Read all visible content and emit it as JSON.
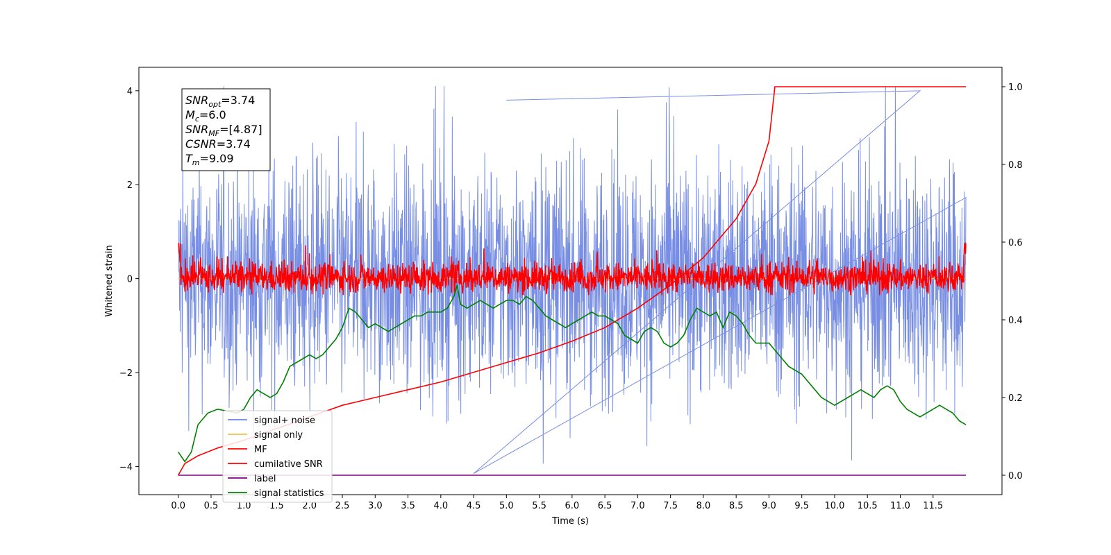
{
  "chart_data": {
    "type": "line",
    "title": "",
    "xlabel": "Time (s)",
    "ylabel_left": "Whitened strain",
    "ylabel_right": "",
    "xlim": [
      -0.6,
      12.55
    ],
    "ylim_left": [
      -4.6,
      4.5
    ],
    "ylim_right": [
      -0.05,
      1.05
    ],
    "x_ticks": [
      "0.0",
      "0.5",
      "1.0",
      "1.5",
      "2.0",
      "2.5",
      "3.0",
      "3.5",
      "4.0",
      "4.5",
      "5.0",
      "5.5",
      "6.0",
      "6.5",
      "7.0",
      "7.5",
      "8.0",
      "8.5",
      "9.0",
      "9.5",
      "10.0",
      "10.5",
      "11.0",
      "11.5"
    ],
    "y_ticks_left": [
      "4",
      "2",
      "0",
      "−2",
      "−4"
    ],
    "y_ticks_right": [
      "1.0",
      "0.8",
      "0.6",
      "0.4",
      "0.2",
      "0.0"
    ],
    "grid": false,
    "legend_position": "lower-left",
    "series": [
      {
        "name": "signal+ noise",
        "color": "#6b84e2",
        "axis": "left",
        "kind": "noise",
        "x_range": [
          0.0,
          12.0
        ],
        "amplitude_band": [
          -4.1,
          4.1
        ],
        "note_peaks": [
          [
            4.5,
            -4.15
          ],
          [
            11.3,
            4.0
          ],
          [
            5.0,
            3.8
          ]
        ]
      },
      {
        "name": "signal only",
        "color": "#f5c04a",
        "axis": "left",
        "values": [
          [
            0.0,
            0.0
          ],
          [
            12.0,
            0.0
          ]
        ]
      },
      {
        "name": "MF",
        "color": "#ff0000",
        "axis": "left",
        "kind": "noise",
        "x_range": [
          0.0,
          12.0
        ],
        "amplitude_band": [
          -0.35,
          0.75
        ]
      },
      {
        "name": "cumilative SNR",
        "color": "#ff0000",
        "axis": "right",
        "x": [
          0.0,
          0.1,
          0.3,
          0.6,
          1.0,
          1.5,
          2.0,
          2.5,
          3.0,
          3.5,
          4.0,
          4.5,
          5.0,
          5.5,
          6.0,
          6.5,
          7.0,
          7.5,
          8.0,
          8.5,
          8.8,
          9.0,
          9.09,
          10.0,
          11.0,
          12.0
        ],
        "y": [
          0.0,
          0.03,
          0.05,
          0.07,
          0.09,
          0.12,
          0.15,
          0.18,
          0.2,
          0.22,
          0.24,
          0.265,
          0.29,
          0.315,
          0.345,
          0.38,
          0.43,
          0.49,
          0.56,
          0.66,
          0.75,
          0.86,
          1.0,
          1.0,
          1.0,
          1.0
        ]
      },
      {
        "name": "label",
        "color": "#800080",
        "axis": "right",
        "values": [
          [
            0.0,
            0.0
          ],
          [
            12.0,
            0.0
          ]
        ]
      },
      {
        "name": "signal statistics",
        "color": "#008000",
        "axis": "right",
        "x": [
          0.0,
          0.1,
          0.2,
          0.3,
          0.45,
          0.6,
          0.75,
          0.9,
          1.0,
          1.1,
          1.2,
          1.3,
          1.4,
          1.5,
          1.6,
          1.7,
          1.8,
          1.9,
          2.0,
          2.1,
          2.2,
          2.3,
          2.4,
          2.5,
          2.6,
          2.7,
          2.8,
          2.9,
          3.0,
          3.1,
          3.2,
          3.3,
          3.4,
          3.5,
          3.6,
          3.7,
          3.8,
          3.9,
          4.0,
          4.1,
          4.2,
          4.25,
          4.3,
          4.4,
          4.5,
          4.6,
          4.7,
          4.8,
          4.9,
          5.0,
          5.1,
          5.2,
          5.3,
          5.4,
          5.5,
          5.6,
          5.7,
          5.8,
          5.9,
          6.0,
          6.1,
          6.2,
          6.3,
          6.4,
          6.5,
          6.6,
          6.7,
          6.8,
          6.9,
          7.0,
          7.1,
          7.2,
          7.3,
          7.4,
          7.5,
          7.6,
          7.7,
          7.8,
          7.9,
          8.0,
          8.1,
          8.2,
          8.3,
          8.4,
          8.5,
          8.6,
          8.7,
          8.8,
          8.9,
          9.0,
          9.1,
          9.2,
          9.3,
          9.4,
          9.5,
          9.6,
          9.7,
          9.8,
          9.9,
          10.0,
          10.1,
          10.2,
          10.3,
          10.4,
          10.5,
          10.6,
          10.7,
          10.8,
          10.9,
          11.0,
          11.1,
          11.2,
          11.3,
          11.4,
          11.5,
          11.6,
          11.7,
          11.8,
          11.9,
          12.0
        ],
        "y": [
          0.06,
          0.035,
          0.06,
          0.13,
          0.16,
          0.17,
          0.165,
          0.16,
          0.17,
          0.2,
          0.22,
          0.21,
          0.2,
          0.21,
          0.24,
          0.28,
          0.29,
          0.3,
          0.31,
          0.3,
          0.31,
          0.33,
          0.35,
          0.38,
          0.43,
          0.42,
          0.4,
          0.38,
          0.39,
          0.38,
          0.37,
          0.38,
          0.39,
          0.4,
          0.41,
          0.41,
          0.42,
          0.42,
          0.42,
          0.43,
          0.46,
          0.49,
          0.44,
          0.43,
          0.44,
          0.45,
          0.44,
          0.43,
          0.44,
          0.45,
          0.45,
          0.44,
          0.46,
          0.45,
          0.43,
          0.41,
          0.4,
          0.39,
          0.38,
          0.39,
          0.4,
          0.41,
          0.42,
          0.41,
          0.41,
          0.4,
          0.39,
          0.36,
          0.35,
          0.34,
          0.37,
          0.38,
          0.37,
          0.34,
          0.33,
          0.34,
          0.36,
          0.4,
          0.43,
          0.42,
          0.41,
          0.42,
          0.38,
          0.42,
          0.41,
          0.39,
          0.36,
          0.34,
          0.34,
          0.34,
          0.32,
          0.3,
          0.28,
          0.27,
          0.26,
          0.24,
          0.22,
          0.2,
          0.19,
          0.18,
          0.19,
          0.2,
          0.21,
          0.22,
          0.21,
          0.2,
          0.22,
          0.23,
          0.22,
          0.19,
          0.17,
          0.16,
          0.15,
          0.16,
          0.17,
          0.18,
          0.17,
          0.16,
          0.14,
          0.13
        ]
      }
    ],
    "annotation_box": {
      "lines": [
        {
          "main": "SNR",
          "sub": "opt",
          "value": "=3.74"
        },
        {
          "main": "M",
          "sub": "c",
          "value": "=6.0"
        },
        {
          "main": "SNR",
          "sub": "MF",
          "value": "=[4.87]"
        },
        {
          "main": "CSNR",
          "sub": "",
          "value": "=3.74"
        },
        {
          "main": "T",
          "sub": "m",
          "value": "=9.09"
        }
      ]
    }
  }
}
